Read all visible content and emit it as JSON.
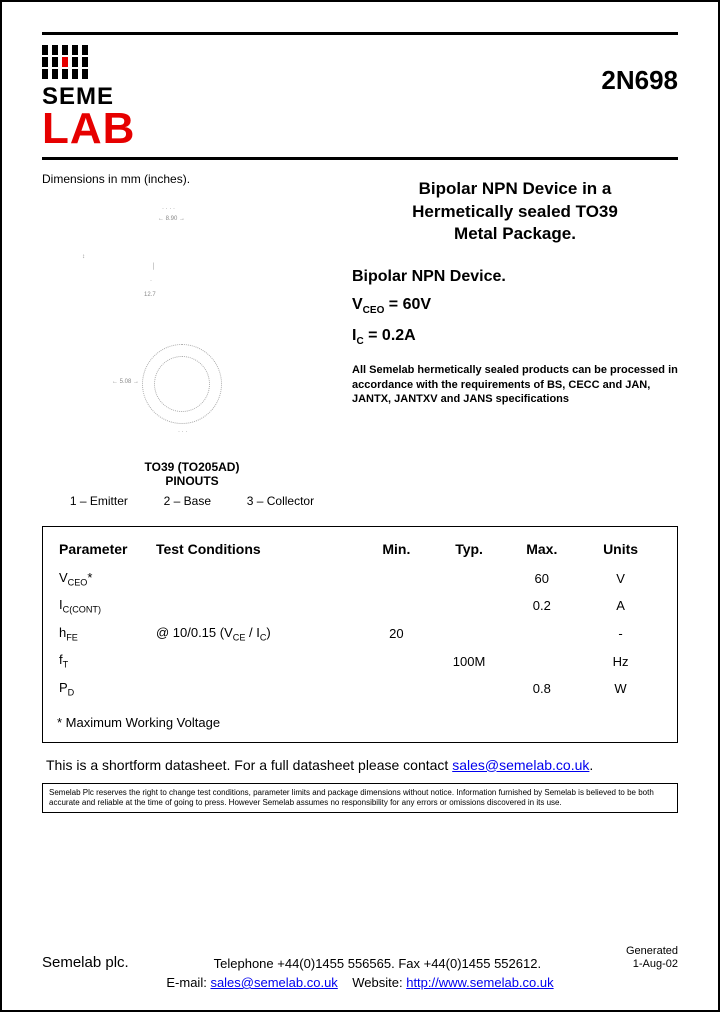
{
  "logo": {
    "seme": "SEME",
    "lab": "LAB"
  },
  "part_number": "2N698",
  "dimensions_label": "Dimensions in mm (inches).",
  "package_title": "TO39 (TO205AD)",
  "package_sub": "PINOUTS",
  "pinouts": {
    "p1": "1 – Emitter",
    "p2": "2 – Base",
    "p3": "3 – Collector"
  },
  "device": {
    "title_l1": "Bipolar NPN Device in a",
    "title_l2": "Hermetically sealed TO39",
    "title_l3": "Metal Package.",
    "subtitle": "Bipolar NPN Device.",
    "vceo_label": "V",
    "vceo_sub": "CEO",
    "vceo_eq": " =  60V",
    "ic_label": "I",
    "ic_sub": "C",
    "ic_eq": " = 0.2A",
    "compliance": "All Semelab hermetically sealed products can be processed in accordance with the requirements of BS, CECC and JAN, JANTX, JANTXV and JANS specifications"
  },
  "table": {
    "headers": {
      "param": "Parameter",
      "cond": "Test Conditions",
      "min": "Min.",
      "typ": "Typ.",
      "max": "Max.",
      "units": "Units"
    },
    "rows": [
      {
        "param_html": "V<sub>CEO</sub>*",
        "cond": "",
        "min": "",
        "typ": "",
        "max": "60",
        "units": "V"
      },
      {
        "param_html": "I<sub>C(CONT)</sub>",
        "cond": "",
        "min": "",
        "typ": "",
        "max": "0.2",
        "units": "A"
      },
      {
        "param_html": "h<sub>FE</sub>",
        "cond_html": "@ 10/0.15 (V<sub>CE</sub> / I<sub>C</sub>)",
        "min": "20",
        "typ": "",
        "max": "",
        "units": "-"
      },
      {
        "param_html": "f<sub>T</sub>",
        "cond": "",
        "min": "",
        "typ": "100M",
        "max": "",
        "units": "Hz"
      },
      {
        "param_html": "P<sub>D</sub>",
        "cond": "",
        "min": "",
        "typ": "",
        "max": "0.8",
        "units": "W"
      }
    ],
    "note": "* Maximum Working Voltage"
  },
  "shortform": {
    "text_before": "This is a shortform datasheet. For a full datasheet please contact ",
    "email": "sales@semelab.co.uk",
    "text_after": "."
  },
  "disclaimer": "Semelab Plc reserves the right to change test conditions, parameter limits and package dimensions without notice. Information furnished by Semelab is believed to be both accurate and reliable at the time of going to press. However Semelab assumes no responsibility for any errors or omissions discovered in its use.",
  "footer": {
    "company": "Semelab plc.",
    "contact": "Telephone +44(0)1455 556565. Fax +44(0)1455 552612.",
    "generated_l1": "Generated",
    "generated_l2": "1-Aug-02",
    "email_label": "E-mail: ",
    "email": "sales@semelab.co.uk",
    "website_label": "    Website: ",
    "website": "http://www.semelab.co.uk"
  }
}
